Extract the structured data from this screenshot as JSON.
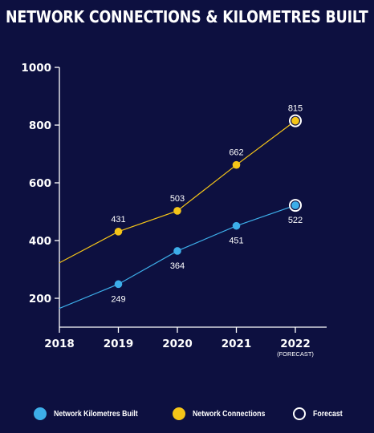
{
  "chart_data": {
    "type": "line",
    "title": "NETWORK CONNECTIONS & KILOMETRES BUILT",
    "x": [
      "2018",
      "2019",
      "2020",
      "2021",
      "2022"
    ],
    "x_sublabels": [
      "",
      "",
      "",
      "",
      "(FORECAST)"
    ],
    "ylim": [
      100,
      1000
    ],
    "yticks": [
      "200",
      "400",
      "600",
      "800",
      "1000"
    ],
    "grid": false,
    "legend_position": "bottom",
    "series": [
      {
        "name": "Network Kilometres Built",
        "color": "#3daee9",
        "values": [
          165,
          249,
          364,
          451,
          522
        ],
        "labels": [
          "",
          "249",
          "364",
          "451",
          "522"
        ],
        "label_position": "below",
        "forecast_index": 4
      },
      {
        "name": "Network Connections",
        "color": "#f5c518",
        "values": [
          323,
          431,
          503,
          662,
          815
        ],
        "labels": [
          "",
          "431",
          "503",
          "662",
          "815"
        ],
        "label_position": "above",
        "forecast_index": 4
      }
    ],
    "forecast_label": "Forecast"
  },
  "colors": {
    "background": "#0d1040",
    "axis": "#ffffff",
    "forecast_ring": "#ffffff"
  }
}
